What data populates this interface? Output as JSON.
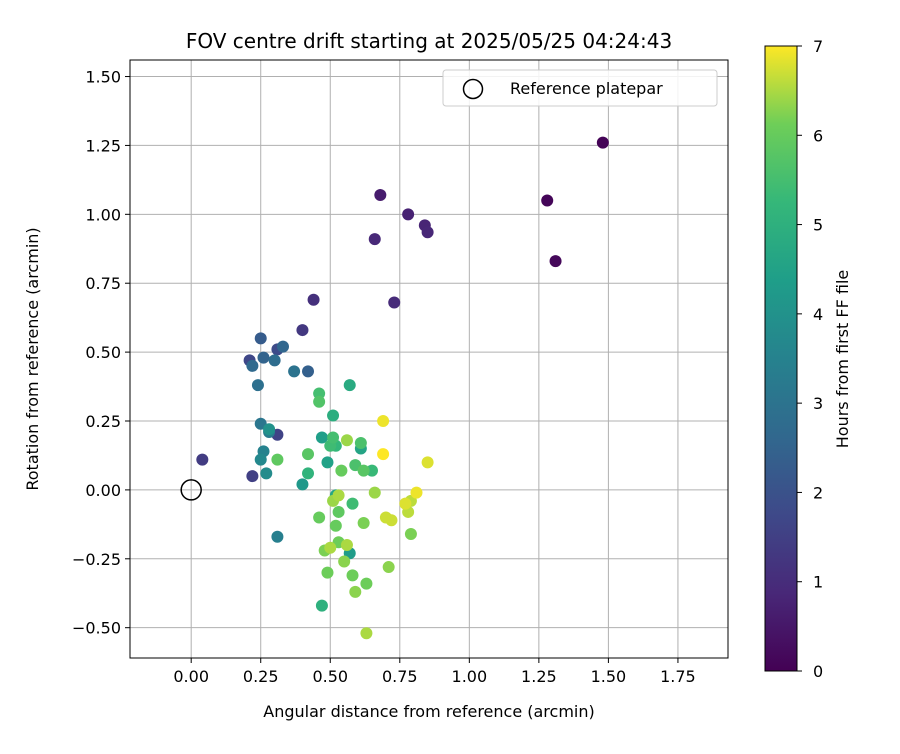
{
  "chart_data": {
    "type": "scatter",
    "title": "FOV centre drift starting at 2025/05/25 04:24:43",
    "xlabel": "Angular distance from reference (arcmin)",
    "ylabel": "Rotation from reference (arcmin)",
    "xlim": [
      -0.22,
      1.93
    ],
    "ylim": [
      -0.61,
      1.56
    ],
    "xticks": [
      0.0,
      0.25,
      0.5,
      0.75,
      1.0,
      1.25,
      1.5,
      1.75
    ],
    "xtick_labels": [
      "0.00",
      "0.25",
      "0.50",
      "0.75",
      "1.00",
      "1.25",
      "1.50",
      "1.75"
    ],
    "yticks": [
      -0.5,
      -0.25,
      0.0,
      0.25,
      0.5,
      0.75,
      1.0,
      1.25,
      1.5
    ],
    "ytick_labels": [
      "−0.50",
      "−0.25",
      "0.00",
      "0.25",
      "0.50",
      "0.75",
      "1.00",
      "1.25",
      "1.50"
    ],
    "grid": true,
    "legend": {
      "placement": "upper-right",
      "entries": [
        {
          "label": "Reference platepar",
          "marker": "open-circle"
        }
      ]
    },
    "reference_point": {
      "x": 0.0,
      "y": 0.0
    },
    "colorbar": {
      "label": "Hours from first FF file",
      "colormap": "viridis",
      "range": [
        0,
        7
      ],
      "ticks": [
        0,
        1,
        2,
        3,
        4,
        5,
        6,
        7
      ],
      "tick_labels": [
        "0",
        "1",
        "2",
        "3",
        "4",
        "5",
        "6",
        "7"
      ]
    },
    "points": [
      {
        "x": 1.48,
        "y": 1.26,
        "c": 0.05
      },
      {
        "x": 1.28,
        "y": 1.05,
        "c": 0.1
      },
      {
        "x": 1.31,
        "y": 0.83,
        "c": 0.15
      },
      {
        "x": 0.68,
        "y": 1.07,
        "c": 0.6
      },
      {
        "x": 0.78,
        "y": 1.0,
        "c": 0.75
      },
      {
        "x": 0.84,
        "y": 0.96,
        "c": 0.8
      },
      {
        "x": 0.85,
        "y": 0.935,
        "c": 0.85
      },
      {
        "x": 0.66,
        "y": 0.91,
        "c": 0.9
      },
      {
        "x": 0.73,
        "y": 0.68,
        "c": 0.95
      },
      {
        "x": 0.44,
        "y": 0.69,
        "c": 1.1
      },
      {
        "x": 0.4,
        "y": 0.58,
        "c": 1.3
      },
      {
        "x": 0.04,
        "y": 0.11,
        "c": 1.4
      },
      {
        "x": 0.22,
        "y": 0.05,
        "c": 1.5
      },
      {
        "x": 0.31,
        "y": 0.2,
        "c": 1.6
      },
      {
        "x": 0.21,
        "y": 0.47,
        "c": 1.7
      },
      {
        "x": 0.31,
        "y": 0.51,
        "c": 1.8
      },
      {
        "x": 0.25,
        "y": 0.55,
        "c": 2.3
      },
      {
        "x": 0.42,
        "y": 0.43,
        "c": 2.4
      },
      {
        "x": 0.26,
        "y": 0.48,
        "c": 2.5
      },
      {
        "x": 0.33,
        "y": 0.52,
        "c": 2.6
      },
      {
        "x": 0.22,
        "y": 0.45,
        "c": 2.7
      },
      {
        "x": 0.3,
        "y": 0.47,
        "c": 2.8
      },
      {
        "x": 0.24,
        "y": 0.38,
        "c": 2.9
      },
      {
        "x": 0.37,
        "y": 0.43,
        "c": 3.0
      },
      {
        "x": 0.25,
        "y": 0.24,
        "c": 3.1
      },
      {
        "x": 0.28,
        "y": 0.21,
        "c": 3.3
      },
      {
        "x": 0.31,
        "y": -0.17,
        "c": 3.4
      },
      {
        "x": 0.26,
        "y": 0.14,
        "c": 3.5
      },
      {
        "x": 0.25,
        "y": 0.11,
        "c": 3.7
      },
      {
        "x": 0.27,
        "y": 0.06,
        "c": 3.8
      },
      {
        "x": 0.28,
        "y": 0.22,
        "c": 4.0
      },
      {
        "x": 0.4,
        "y": 0.02,
        "c": 4.2
      },
      {
        "x": 0.57,
        "y": -0.23,
        "c": 4.3
      },
      {
        "x": 0.47,
        "y": 0.19,
        "c": 4.4
      },
      {
        "x": 0.49,
        "y": 0.1,
        "c": 4.5
      },
      {
        "x": 0.61,
        "y": 0.15,
        "c": 4.6
      },
      {
        "x": 0.52,
        "y": -0.02,
        "c": 4.7
      },
      {
        "x": 0.57,
        "y": 0.38,
        "c": 4.8
      },
      {
        "x": 0.51,
        "y": 0.27,
        "c": 4.9
      },
      {
        "x": 0.47,
        "y": -0.42,
        "c": 5.0
      },
      {
        "x": 0.42,
        "y": 0.06,
        "c": 5.1
      },
      {
        "x": 0.52,
        "y": 0.16,
        "c": 5.2
      },
      {
        "x": 0.65,
        "y": 0.07,
        "c": 5.3
      },
      {
        "x": 0.5,
        "y": 0.16,
        "c": 5.4
      },
      {
        "x": 0.58,
        "y": -0.05,
        "c": 5.4
      },
      {
        "x": 0.46,
        "y": 0.35,
        "c": 5.5
      },
      {
        "x": 0.51,
        "y": 0.19,
        "c": 5.5
      },
      {
        "x": 0.59,
        "y": 0.09,
        "c": 5.6
      },
      {
        "x": 0.61,
        "y": 0.17,
        "c": 5.6
      },
      {
        "x": 0.46,
        "y": 0.32,
        "c": 5.7
      },
      {
        "x": 0.42,
        "y": 0.13,
        "c": 5.8
      },
      {
        "x": 0.62,
        "y": 0.07,
        "c": 5.8
      },
      {
        "x": 0.31,
        "y": 0.11,
        "c": 5.9
      },
      {
        "x": 0.53,
        "y": -0.08,
        "c": 5.9
      },
      {
        "x": 0.54,
        "y": 0.07,
        "c": 6.0
      },
      {
        "x": 0.52,
        "y": -0.13,
        "c": 6.0
      },
      {
        "x": 0.46,
        "y": -0.1,
        "c": 6.0
      },
      {
        "x": 0.53,
        "y": -0.19,
        "c": 6.1
      },
      {
        "x": 0.58,
        "y": -0.31,
        "c": 6.1
      },
      {
        "x": 0.49,
        "y": -0.3,
        "c": 6.1
      },
      {
        "x": 0.63,
        "y": -0.34,
        "c": 6.1
      },
      {
        "x": 0.79,
        "y": -0.16,
        "c": 6.2
      },
      {
        "x": 0.62,
        "y": -0.12,
        "c": 6.2
      },
      {
        "x": 0.48,
        "y": -0.22,
        "c": 6.2
      },
      {
        "x": 0.55,
        "y": -0.26,
        "c": 6.3
      },
      {
        "x": 0.59,
        "y": -0.37,
        "c": 6.3
      },
      {
        "x": 0.71,
        "y": -0.28,
        "c": 6.3
      },
      {
        "x": 0.56,
        "y": 0.18,
        "c": 6.4
      },
      {
        "x": 0.51,
        "y": -0.04,
        "c": 6.4
      },
      {
        "x": 0.66,
        "y": -0.01,
        "c": 6.4
      },
      {
        "x": 0.53,
        "y": -0.02,
        "c": 6.5
      },
      {
        "x": 0.5,
        "y": -0.21,
        "c": 6.5
      },
      {
        "x": 0.56,
        "y": -0.2,
        "c": 6.5
      },
      {
        "x": 0.63,
        "y": -0.52,
        "c": 6.5
      },
      {
        "x": 0.79,
        "y": -0.04,
        "c": 6.6
      },
      {
        "x": 0.78,
        "y": -0.08,
        "c": 6.6
      },
      {
        "x": 0.7,
        "y": -0.1,
        "c": 6.7
      },
      {
        "x": 0.72,
        "y": -0.11,
        "c": 6.7
      },
      {
        "x": 0.85,
        "y": 0.1,
        "c": 6.8
      },
      {
        "x": 0.77,
        "y": -0.05,
        "c": 6.8
      },
      {
        "x": 0.81,
        "y": -0.01,
        "c": 6.9
      },
      {
        "x": 0.69,
        "y": 0.25,
        "c": 6.9
      },
      {
        "x": 0.69,
        "y": 0.13,
        "c": 7.0
      }
    ]
  }
}
